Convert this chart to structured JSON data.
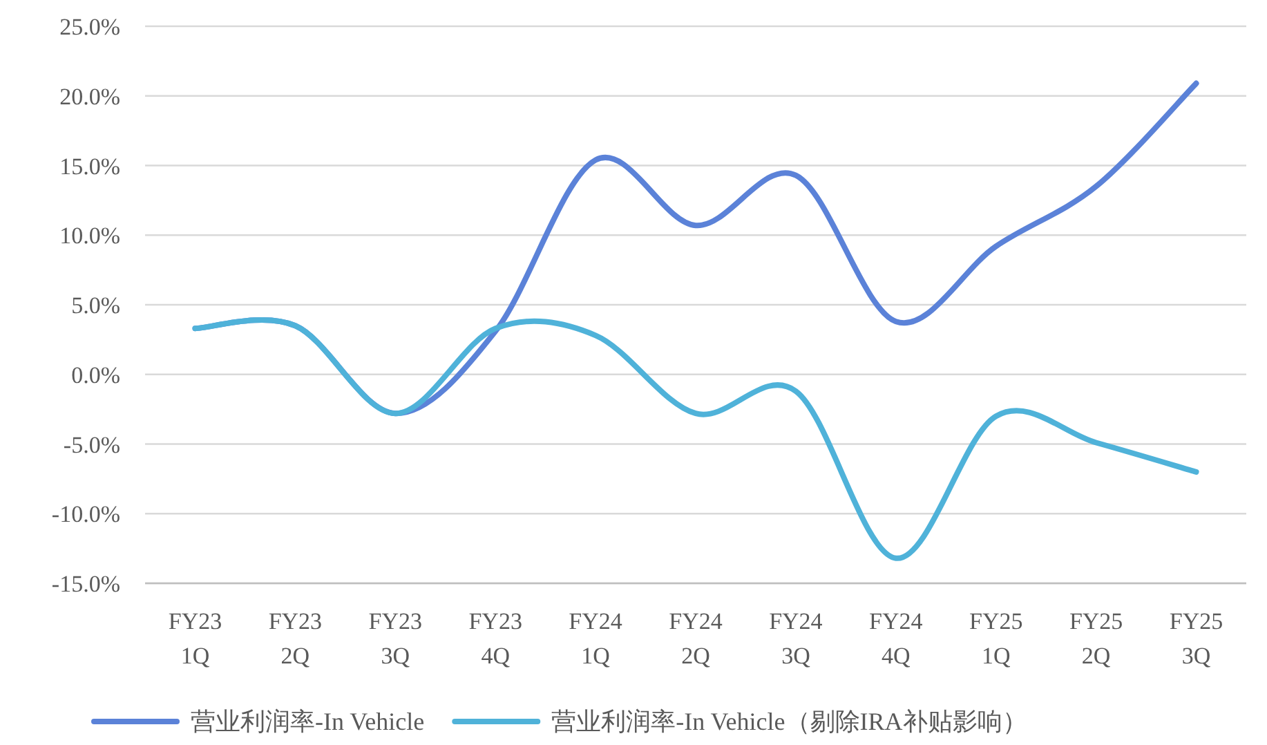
{
  "chart_data": {
    "type": "line",
    "categories": [
      "FY23 1Q",
      "FY23 2Q",
      "FY23 3Q",
      "FY23 4Q",
      "FY24 1Q",
      "FY24 2Q",
      "FY24 3Q",
      "FY24 4Q",
      "FY25 1Q",
      "FY25 2Q",
      "FY25 3Q"
    ],
    "series": [
      {
        "name": "营业利润率-In Vehicle",
        "color": "#5b82d8",
        "values": [
          3.3,
          3.5,
          -2.8,
          3.1,
          15.4,
          10.7,
          14.3,
          3.8,
          9.2,
          13.5,
          20.9
        ]
      },
      {
        "name": "营业利润率-In Vehicle（剔除IRA补贴影响）",
        "color": "#4fb2d9",
        "values": [
          3.3,
          3.5,
          -2.8,
          3.3,
          2.8,
          -2.8,
          -1.2,
          -13.2,
          -3.0,
          -4.9,
          -7.0
        ]
      }
    ],
    "ylim": [
      -15,
      25
    ],
    "yticks": [
      {
        "value": -15,
        "label": "-15.0%"
      },
      {
        "value": -10,
        "label": "-10.0%"
      },
      {
        "value": -5,
        "label": "-5.0%"
      },
      {
        "value": 0,
        "label": "0.0%"
      },
      {
        "value": 5,
        "label": "5.0%"
      },
      {
        "value": 10,
        "label": "10.0%"
      },
      {
        "value": 15,
        "label": "15.0%"
      },
      {
        "value": 20,
        "label": "20.0%"
      },
      {
        "value": 25,
        "label": "25.0%"
      }
    ],
    "grid": "y",
    "legend": "bottom",
    "marker": "none",
    "line_style": "solid"
  }
}
